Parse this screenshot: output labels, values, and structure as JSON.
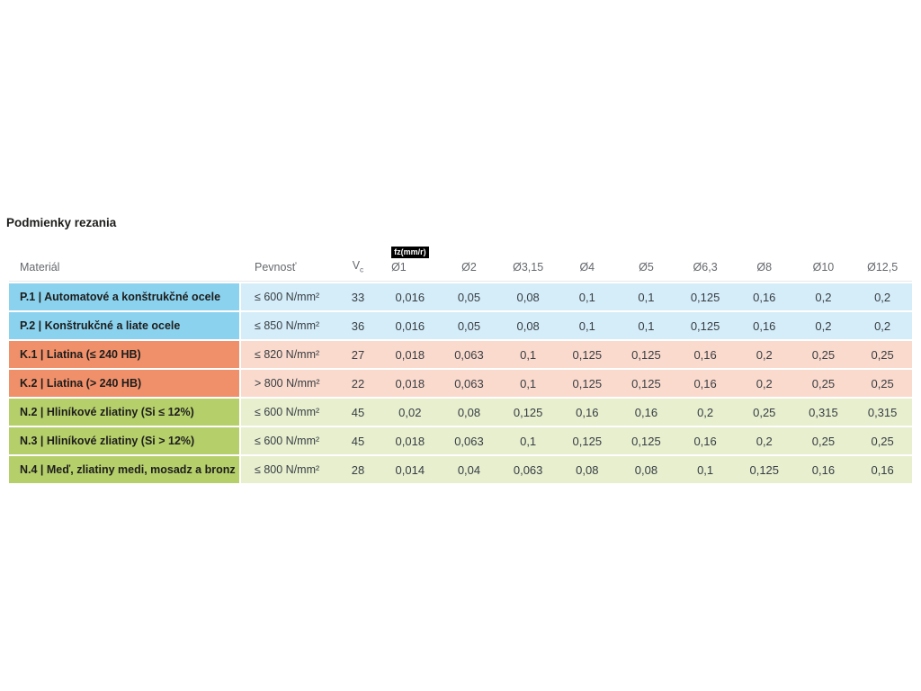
{
  "title": "Podmienky rezania",
  "colors": {
    "group_p_material_bg": "#8bd2ef",
    "group_p_values_bg": "#d4edf9",
    "group_k_material_bg": "#f0906b",
    "group_k_values_bg": "#fadacd",
    "group_n_material_bg": "#b5cf6b",
    "group_n_values_bg": "#e7efcf",
    "fz_badge_bg": "#000000",
    "fz_badge_text": "#ffffff",
    "header_text": "#65686d",
    "body_text": "#1d1d1b"
  },
  "table": {
    "headers": {
      "material": "Materiál",
      "pevnost": "Pevnosť",
      "vc_main": "V",
      "vc_sub": "c",
      "fz_badge": "fz(mm/r)",
      "diameters": [
        "Ø1",
        "Ø2",
        "Ø3,15",
        "Ø4",
        "Ø5",
        "Ø6,3",
        "Ø8",
        "Ø10",
        "Ø12,5"
      ]
    },
    "rows": [
      {
        "group": "P",
        "material": "P.1 | Automatové a konštrukčné ocele",
        "pevnost": "≤ 600 N/mm²",
        "vc": "33",
        "fz": [
          "0,016",
          "0,05",
          "0,08",
          "0,1",
          "0,1",
          "0,125",
          "0,16",
          "0,2",
          "0,2"
        ]
      },
      {
        "group": "P",
        "material": "P.2 | Konštrukčné a liate ocele",
        "pevnost": "≤ 850 N/mm²",
        "vc": "36",
        "fz": [
          "0,016",
          "0,05",
          "0,08",
          "0,1",
          "0,1",
          "0,125",
          "0,16",
          "0,2",
          "0,2"
        ]
      },
      {
        "group": "K",
        "material": "K.1 | Liatina (≤ 240 HB)",
        "pevnost": "≤ 820 N/mm²",
        "vc": "27",
        "fz": [
          "0,018",
          "0,063",
          "0,1",
          "0,125",
          "0,125",
          "0,16",
          "0,2",
          "0,25",
          "0,25"
        ]
      },
      {
        "group": "K",
        "material": "K.2 | Liatina (> 240 HB)",
        "pevnost": "> 800 N/mm²",
        "vc": "22",
        "fz": [
          "0,018",
          "0,063",
          "0,1",
          "0,125",
          "0,125",
          "0,16",
          "0,2",
          "0,25",
          "0,25"
        ]
      },
      {
        "group": "N",
        "material": "N.2 | Hliníkové zliatiny (Si ≤ 12%)",
        "pevnost": "≤ 600 N/mm²",
        "vc": "45",
        "fz": [
          "0,02",
          "0,08",
          "0,125",
          "0,16",
          "0,16",
          "0,2",
          "0,25",
          "0,315",
          "0,315"
        ]
      },
      {
        "group": "N",
        "material": "N.3 | Hliníkové zliatiny (Si > 12%)",
        "pevnost": "≤ 600 N/mm²",
        "vc": "45",
        "fz": [
          "0,018",
          "0,063",
          "0,1",
          "0,125",
          "0,125",
          "0,16",
          "0,2",
          "0,25",
          "0,25"
        ]
      },
      {
        "group": "N",
        "material": "N.4 | Meď, zliatiny medi, mosadz a bronz",
        "pevnost": "≤ 800 N/mm²",
        "vc": "28",
        "fz": [
          "0,014",
          "0,04",
          "0,063",
          "0,08",
          "0,08",
          "0,1",
          "0,125",
          "0,16",
          "0,16"
        ]
      }
    ]
  }
}
